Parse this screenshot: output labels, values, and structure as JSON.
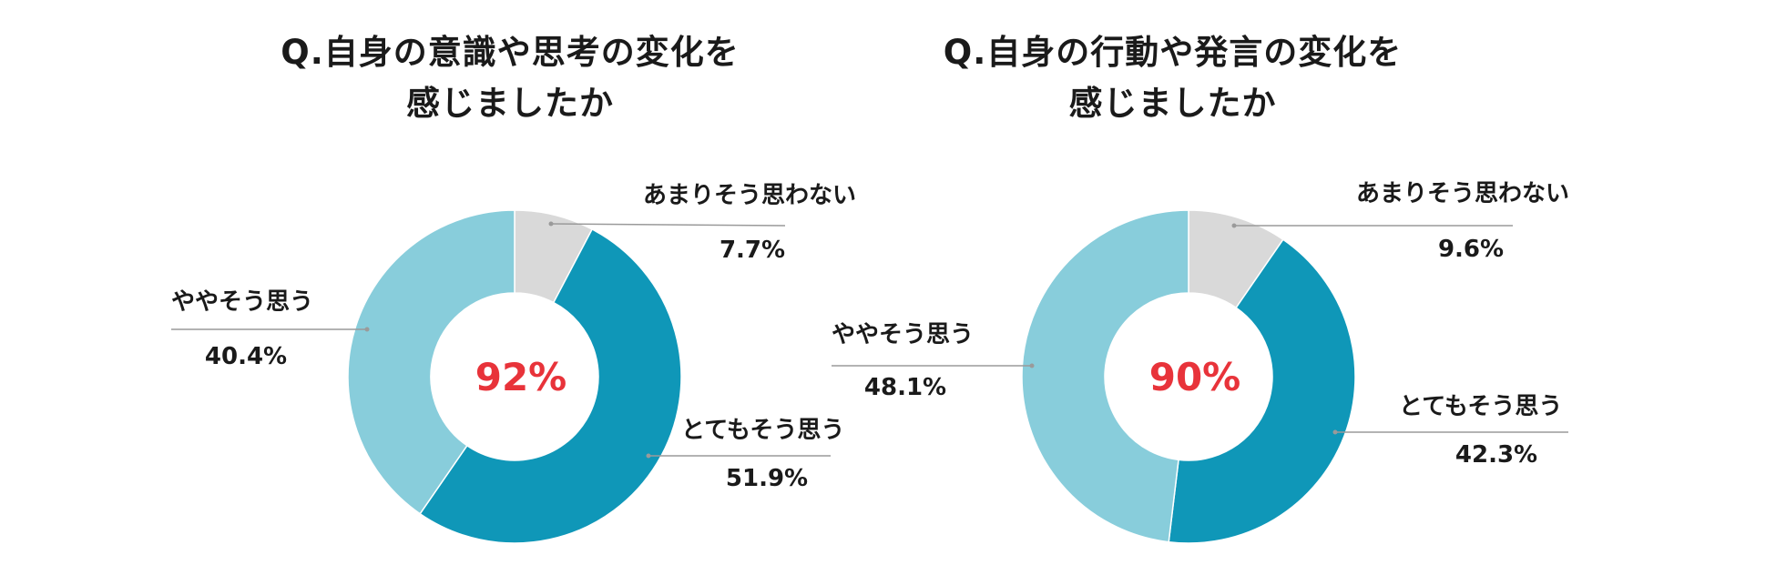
{
  "colors": {
    "strong": "#0f97b8",
    "somewhat": "#88cddb",
    "not_much": "#d9d9d9",
    "center_text": "#e8333a",
    "leader": "#9a9a9a"
  },
  "chart_data": [
    {
      "type": "pie",
      "donut": true,
      "title_lines": [
        "Q.自身の意識や思考の変化を",
        "感じましたか"
      ],
      "center_label": "92%",
      "slices": [
        {
          "label": "あまりそう思わない",
          "value": 7.7,
          "pct_text": "7.7%",
          "color_key": "not_much"
        },
        {
          "label": "とてもそう思う",
          "value": 51.9,
          "pct_text": "51.9%",
          "color_key": "strong"
        },
        {
          "label": "ややそう思う",
          "value": 40.4,
          "pct_text": "40.4%",
          "color_key": "somewhat"
        }
      ]
    },
    {
      "type": "pie",
      "donut": true,
      "title_lines": [
        "Q.自身の行動や発言の変化を",
        "感じましたか"
      ],
      "center_label": "90%",
      "slices": [
        {
          "label": "あまりそう思わない",
          "value": 9.6,
          "pct_text": "9.6%",
          "color_key": "not_much"
        },
        {
          "label": "とてもそう思う",
          "value": 42.3,
          "pct_text": "42.3%",
          "color_key": "strong"
        },
        {
          "label": "ややそう思う",
          "value": 48.1,
          "pct_text": "48.1%",
          "color_key": "somewhat"
        }
      ]
    }
  ]
}
